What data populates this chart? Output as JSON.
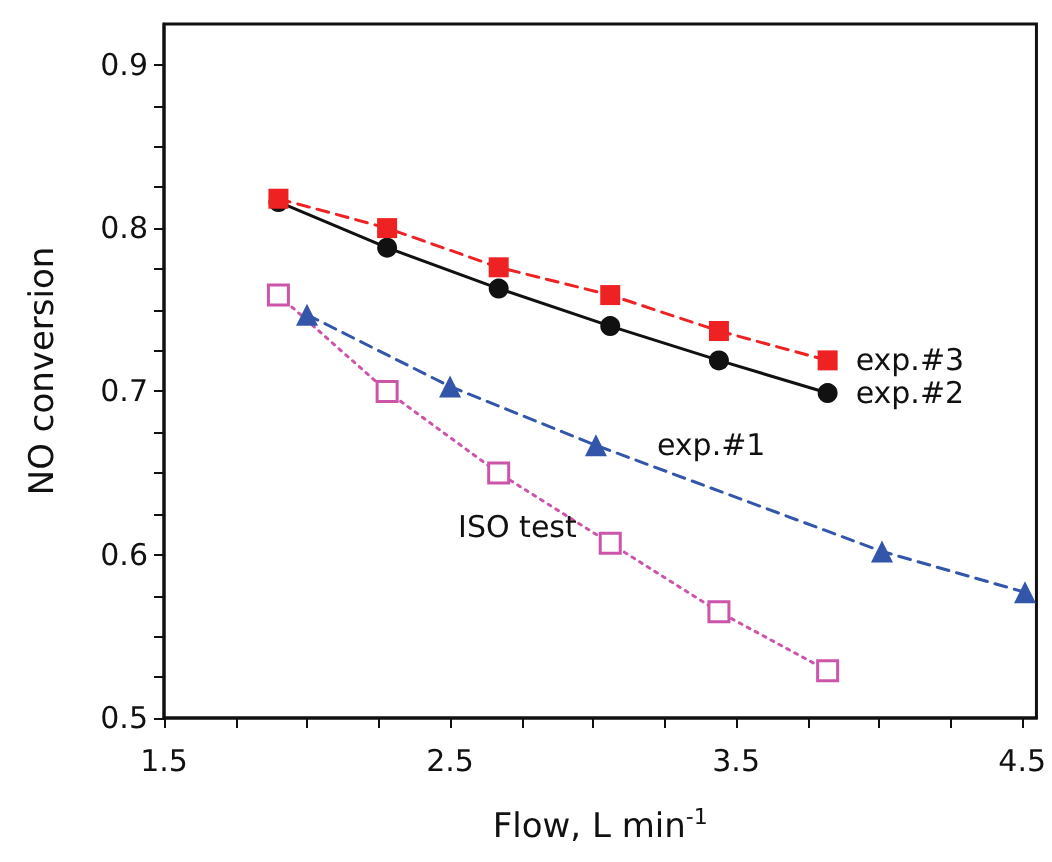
{
  "chart_data": {
    "type": "line",
    "xlabel": "Flow, L min$^{-1}$",
    "ylabel": "NO conversion",
    "xlim": [
      1.5,
      4.55
    ],
    "ylim": [
      0.5,
      0.925
    ],
    "xticks": [
      1.5,
      {
        "value": 1.75,
        "label": null
      },
      {
        "value": 2,
        "label": null
      },
      {
        "value": 2.25,
        "label": null
      },
      2.5,
      {
        "value": 2.75,
        "label": null
      },
      {
        "value": 3,
        "label": null
      },
      {
        "value": 3.25,
        "label": null
      },
      3.5,
      {
        "value": 3.75,
        "label": null
      },
      {
        "value": 4,
        "label": null
      },
      {
        "value": 4.25,
        "label": null
      },
      4.5
    ],
    "yticks": [
      0.5,
      {
        "value": 0.525,
        "label": null
      },
      {
        "value": 0.55,
        "label": null
      },
      {
        "value": 0.575,
        "label": null
      },
      0.6,
      {
        "value": 0.625,
        "label": null
      },
      {
        "value": 0.65,
        "label": null
      },
      {
        "value": 0.675,
        "label": null
      },
      0.7,
      {
        "value": 0.725,
        "label": null
      },
      {
        "value": 0.75,
        "label": null
      },
      {
        "value": 0.775,
        "label": null
      },
      0.8,
      {
        "value": 0.825,
        "label": null
      },
      {
        "value": 0.85,
        "label": null
      },
      {
        "value": 0.875,
        "label": null
      },
      0.9
    ],
    "grid": false,
    "legend": false,
    "series": [
      {
        "name": "exp.#3",
        "color": "#ee2222",
        "marker": "square",
        "line_style": "dashed",
        "x": [
          1.9,
          2.28,
          2.67,
          3.06,
          3.44,
          3.82
        ],
        "values": [
          0.818,
          0.8,
          0.776,
          0.759,
          0.737,
          0.719
        ]
      },
      {
        "name": "exp.#2",
        "color": "#111111",
        "marker": "circle",
        "line_style": "solid",
        "x": [
          1.9,
          2.28,
          2.67,
          3.06,
          3.44,
          3.82
        ],
        "values": [
          0.816,
          0.788,
          0.763,
          0.74,
          0.719,
          0.699
        ]
      },
      {
        "name": "exp.#1",
        "color": "#3355aa",
        "marker": "triangle",
        "line_style": "dashed",
        "x": [
          2.0,
          2.5,
          3.01,
          4.01,
          4.51
        ],
        "values": [
          0.747,
          0.703,
          0.667,
          0.602,
          0.577
        ]
      },
      {
        "name": "ISO test",
        "color": "#cc55aa",
        "marker": "square",
        "line_style": "dotted",
        "x": [
          1.9,
          2.28,
          2.67,
          3.06,
          3.44,
          3.82
        ],
        "values": [
          0.759,
          0.7,
          0.65,
          0.607,
          0.565,
          0.529
        ]
      }
    ]
  }
}
